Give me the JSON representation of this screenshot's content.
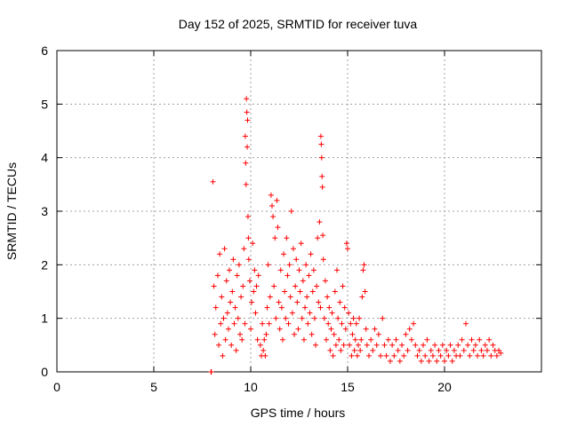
{
  "chart_data": {
    "type": "scatter",
    "title": "Day 152 of 2025, SRMTID for receiver tuva",
    "xlabel": "GPS time / hours",
    "ylabel": "SRMTID / TECUs",
    "xlim": [
      0,
      25
    ],
    "ylim": [
      0,
      6
    ],
    "xticks": [
      0,
      5,
      10,
      15,
      20
    ],
    "yticks": [
      0,
      1,
      2,
      3,
      4,
      5,
      6
    ],
    "grid": true,
    "marker": "+",
    "marker_color": "#ff0000",
    "series": [
      {
        "values_note_x_hours_y_tecu": true,
        "points": [
          [
            7.95,
            0.0
          ],
          [
            7.97,
            0.0
          ],
          [
            8.05,
            3.55
          ],
          [
            8.1,
            1.6
          ],
          [
            8.15,
            0.7
          ],
          [
            8.2,
            1.2
          ],
          [
            8.3,
            1.8
          ],
          [
            8.35,
            0.5
          ],
          [
            8.4,
            2.2
          ],
          [
            8.45,
            0.9
          ],
          [
            8.5,
            1.4
          ],
          [
            8.55,
            0.3
          ],
          [
            8.6,
            1.0
          ],
          [
            8.65,
            2.3
          ],
          [
            8.7,
            0.6
          ],
          [
            8.75,
            1.7
          ],
          [
            8.8,
            1.1
          ],
          [
            8.85,
            0.8
          ],
          [
            8.9,
            1.9
          ],
          [
            8.95,
            1.3
          ],
          [
            9.0,
            0.5
          ],
          [
            9.05,
            1.5
          ],
          [
            9.1,
            2.1
          ],
          [
            9.15,
            0.9
          ],
          [
            9.2,
            1.2
          ],
          [
            9.25,
            0.4
          ],
          [
            9.3,
            1.8
          ],
          [
            9.35,
            1.0
          ],
          [
            9.4,
            2.0
          ],
          [
            9.45,
            0.7
          ],
          [
            9.5,
            1.4
          ],
          [
            9.55,
            0.6
          ],
          [
            9.6,
            1.6
          ],
          [
            9.65,
            2.3
          ],
          [
            9.7,
            0.9
          ],
          [
            9.72,
            4.4
          ],
          [
            9.74,
            3.9
          ],
          [
            9.76,
            3.5
          ],
          [
            9.78,
            5.1
          ],
          [
            9.8,
            4.85
          ],
          [
            9.82,
            4.2
          ],
          [
            9.84,
            4.7
          ],
          [
            9.86,
            2.9
          ],
          [
            9.88,
            2.5
          ],
          [
            9.9,
            2.1
          ],
          [
            9.95,
            1.7
          ],
          [
            10.0,
            0.8
          ],
          [
            10.05,
            1.3
          ],
          [
            10.1,
            2.4
          ],
          [
            10.15,
            1.5
          ],
          [
            10.2,
            1.9
          ],
          [
            10.25,
            1.1
          ],
          [
            10.3,
            1.6
          ],
          [
            10.35,
            0.6
          ],
          [
            10.4,
            1.8
          ],
          [
            10.5,
            0.5
          ],
          [
            10.55,
            0.3
          ],
          [
            10.6,
            0.9
          ],
          [
            10.65,
            0.4
          ],
          [
            10.7,
            0.6
          ],
          [
            10.75,
            0.3
          ],
          [
            10.8,
            0.7
          ],
          [
            10.85,
            1.2
          ],
          [
            10.9,
            2.0
          ],
          [
            10.95,
            0.9
          ],
          [
            11.0,
            1.4
          ],
          [
            11.05,
            3.3
          ],
          [
            11.1,
            3.1
          ],
          [
            11.15,
            2.9
          ],
          [
            11.2,
            1.6
          ],
          [
            11.25,
            2.5
          ],
          [
            11.3,
            1.0
          ],
          [
            11.35,
            3.2
          ],
          [
            11.4,
            2.7
          ],
          [
            11.45,
            1.3
          ],
          [
            11.5,
            0.8
          ],
          [
            11.55,
            1.9
          ],
          [
            11.6,
            1.2
          ],
          [
            11.65,
            0.6
          ],
          [
            11.7,
            2.2
          ],
          [
            11.75,
            1.5
          ],
          [
            11.8,
            1.0
          ],
          [
            11.85,
            2.5
          ],
          [
            11.9,
            1.8
          ],
          [
            11.95,
            0.9
          ],
          [
            12.0,
            2.0
          ],
          [
            12.05,
            1.4
          ],
          [
            12.1,
            3.0
          ],
          [
            12.15,
            1.1
          ],
          [
            12.2,
            2.3
          ],
          [
            12.25,
            0.7
          ],
          [
            12.3,
            1.6
          ],
          [
            12.35,
            2.1
          ],
          [
            12.4,
            1.3
          ],
          [
            12.45,
            0.8
          ],
          [
            12.5,
            1.9
          ],
          [
            12.55,
            1.5
          ],
          [
            12.6,
            2.4
          ],
          [
            12.65,
            1.0
          ],
          [
            12.7,
            1.7
          ],
          [
            12.75,
            0.6
          ],
          [
            12.8,
            1.2
          ],
          [
            12.85,
            2.0
          ],
          [
            12.9,
            1.4
          ],
          [
            12.95,
            0.9
          ],
          [
            13.0,
            1.8
          ],
          [
            13.05,
            1.1
          ],
          [
            13.1,
            2.2
          ],
          [
            13.15,
            0.7
          ],
          [
            13.2,
            1.5
          ],
          [
            13.25,
            1.9
          ],
          [
            13.3,
            1.0
          ],
          [
            13.35,
            0.5
          ],
          [
            13.4,
            1.6
          ],
          [
            13.45,
            2.5
          ],
          [
            13.5,
            1.3
          ],
          [
            13.55,
            2.8
          ],
          [
            13.6,
            1.2
          ],
          [
            13.62,
            4.4
          ],
          [
            13.64,
            4.25
          ],
          [
            13.66,
            4.0
          ],
          [
            13.68,
            3.65
          ],
          [
            13.7,
            3.45
          ],
          [
            13.72,
            2.55
          ],
          [
            13.75,
            2.1
          ],
          [
            13.8,
            1.0
          ],
          [
            13.85,
            1.7
          ],
          [
            13.9,
            0.6
          ],
          [
            13.95,
            1.4
          ],
          [
            14.0,
            0.9
          ],
          [
            14.05,
            1.2
          ],
          [
            14.1,
            0.4
          ],
          [
            14.15,
            0.8
          ],
          [
            14.2,
            1.1
          ],
          [
            14.25,
            0.3
          ],
          [
            14.3,
            0.7
          ],
          [
            14.35,
            1.5
          ],
          [
            14.4,
            0.5
          ],
          [
            14.45,
            1.9
          ],
          [
            14.5,
            1.0
          ],
          [
            14.55,
            0.6
          ],
          [
            14.6,
            1.3
          ],
          [
            14.65,
            0.4
          ],
          [
            14.7,
            0.9
          ],
          [
            14.75,
            1.6
          ],
          [
            14.8,
            0.5
          ],
          [
            14.85,
            1.2
          ],
          [
            14.9,
            0.8
          ],
          [
            14.95,
            2.4
          ],
          [
            15.0,
            2.3
          ],
          [
            15.05,
            1.1
          ],
          [
            15.1,
            0.5
          ],
          [
            15.15,
            0.9
          ],
          [
            15.2,
            0.3
          ],
          [
            15.25,
            0.7
          ],
          [
            15.3,
            1.0
          ],
          [
            15.35,
            0.4
          ],
          [
            15.4,
            0.6
          ],
          [
            15.45,
            0.9
          ],
          [
            15.5,
            0.3
          ],
          [
            15.55,
            0.5
          ],
          [
            15.6,
            1.0
          ],
          [
            15.65,
            0.4
          ],
          [
            15.7,
            0.6
          ],
          [
            15.75,
            1.4
          ],
          [
            15.8,
            1.9
          ],
          [
            15.85,
            2.0
          ],
          [
            15.9,
            1.5
          ],
          [
            15.95,
            0.8
          ],
          [
            16.0,
            0.5
          ],
          [
            16.1,
            0.3
          ],
          [
            16.2,
            0.6
          ],
          [
            16.3,
            0.4
          ],
          [
            16.4,
            0.8
          ],
          [
            16.5,
            0.5
          ],
          [
            16.6,
            0.7
          ],
          [
            16.7,
            0.3
          ],
          [
            16.8,
            1.0
          ],
          [
            16.9,
            0.5
          ],
          [
            17.0,
            0.3
          ],
          [
            17.1,
            0.6
          ],
          [
            17.2,
            0.2
          ],
          [
            17.3,
            0.5
          ],
          [
            17.4,
            0.3
          ],
          [
            17.5,
            0.6
          ],
          [
            17.6,
            0.4
          ],
          [
            17.7,
            0.2
          ],
          [
            17.8,
            0.5
          ],
          [
            17.9,
            0.3
          ],
          [
            18.0,
            0.7
          ],
          [
            18.1,
            0.4
          ],
          [
            18.2,
            0.8
          ],
          [
            18.3,
            0.6
          ],
          [
            18.4,
            0.9
          ],
          [
            18.5,
            0.5
          ],
          [
            18.6,
            0.3
          ],
          [
            18.7,
            0.4
          ],
          [
            18.8,
            0.2
          ],
          [
            18.9,
            0.5
          ],
          [
            19.0,
            0.3
          ],
          [
            19.1,
            0.6
          ],
          [
            19.2,
            0.2
          ],
          [
            19.3,
            0.4
          ],
          [
            19.4,
            0.3
          ],
          [
            19.5,
            0.5
          ],
          [
            19.6,
            0.2
          ],
          [
            19.7,
            0.4
          ],
          [
            19.8,
            0.3
          ],
          [
            19.9,
            0.5
          ],
          [
            20.0,
            0.2
          ],
          [
            20.1,
            0.4
          ],
          [
            20.2,
            0.3
          ],
          [
            20.3,
            0.5
          ],
          [
            20.4,
            0.2
          ],
          [
            20.5,
            0.4
          ],
          [
            20.6,
            0.3
          ],
          [
            20.7,
            0.5
          ],
          [
            20.8,
            0.3
          ],
          [
            20.9,
            0.6
          ],
          [
            21.0,
            0.4
          ],
          [
            21.1,
            0.9
          ],
          [
            21.2,
            0.5
          ],
          [
            21.3,
            0.3
          ],
          [
            21.4,
            0.6
          ],
          [
            21.5,
            0.4
          ],
          [
            21.6,
            0.5
          ],
          [
            21.7,
            0.3
          ],
          [
            21.8,
            0.6
          ],
          [
            21.9,
            0.4
          ],
          [
            22.0,
            0.3
          ],
          [
            22.1,
            0.5
          ],
          [
            22.2,
            0.4
          ],
          [
            22.3,
            0.6
          ],
          [
            22.4,
            0.3
          ],
          [
            22.5,
            0.5
          ],
          [
            22.6,
            0.4
          ],
          [
            22.7,
            0.3
          ],
          [
            22.8,
            0.4
          ],
          [
            22.9,
            0.35
          ]
        ]
      }
    ]
  }
}
